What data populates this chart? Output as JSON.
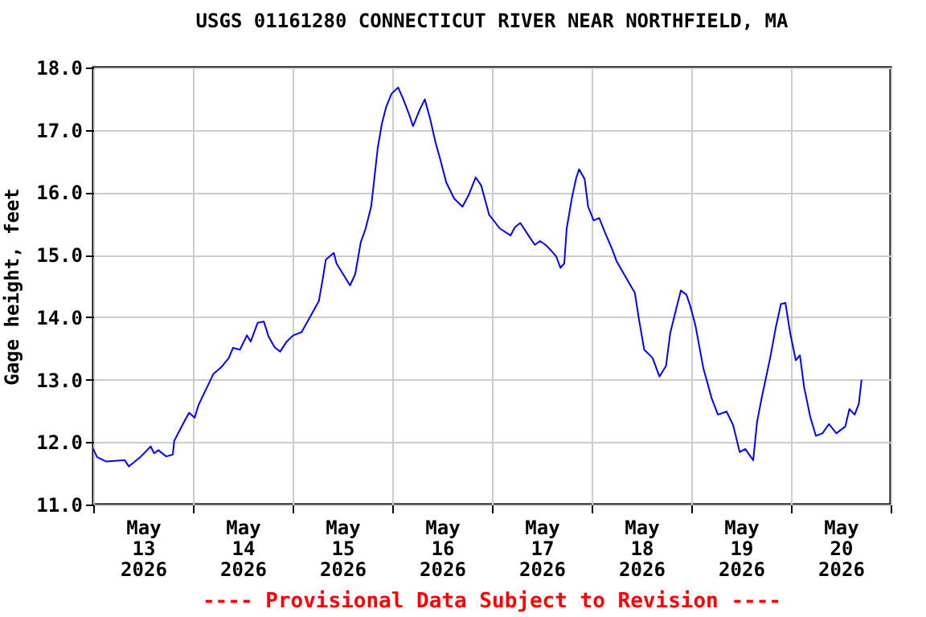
{
  "chart_data": {
    "type": "line",
    "title": "USGS 01161280 CONNECTICUT RIVER NEAR NORTHFIELD, MA",
    "ylabel": "Gage height, feet",
    "annotations": [
      "---- Provisional Data Subject to Revision ----"
    ],
    "grid": true,
    "marker": "none",
    "line_style": "solid",
    "xlim": [
      "2026-05-13T00:00",
      "2026-05-21T00:00"
    ],
    "xticks": [
      {
        "value": "2026-05-13T00:00",
        "label": null
      },
      {
        "value": "2026-05-13T12:00",
        "label": "May\n13\n2026"
      },
      {
        "value": "2026-05-14T00:00",
        "label": null
      },
      {
        "value": "2026-05-14T12:00",
        "label": "May\n14\n2026"
      },
      {
        "value": "2026-05-15T00:00",
        "label": null
      },
      {
        "value": "2026-05-15T12:00",
        "label": "May\n15\n2026"
      },
      {
        "value": "2026-05-16T00:00",
        "label": null
      },
      {
        "value": "2026-05-16T12:00",
        "label": "May\n16\n2026"
      },
      {
        "value": "2026-05-17T00:00",
        "label": null
      },
      {
        "value": "2026-05-17T12:00",
        "label": "May\n17\n2026"
      },
      {
        "value": "2026-05-18T00:00",
        "label": null
      },
      {
        "value": "2026-05-18T12:00",
        "label": "May\n18\n2026"
      },
      {
        "value": "2026-05-19T00:00",
        "label": null
      },
      {
        "value": "2026-05-19T12:00",
        "label": "May\n19\n2026"
      },
      {
        "value": "2026-05-20T00:00",
        "label": null
      },
      {
        "value": "2026-05-20T12:00",
        "label": "May\n20\n2026"
      },
      {
        "value": "2026-05-21T00:00",
        "label": null
      }
    ],
    "ylim": [
      11,
      18
    ],
    "yticks": [
      {
        "value": 11,
        "label": "11.0"
      },
      {
        "value": 12,
        "label": "12.0"
      },
      {
        "value": 13,
        "label": "13.0"
      },
      {
        "value": 14,
        "label": "14.0"
      },
      {
        "value": 15,
        "label": "15.0"
      },
      {
        "value": 16,
        "label": "16.0"
      },
      {
        "value": 17,
        "label": "17.0"
      },
      {
        "value": 18,
        "label": "18.0"
      }
    ],
    "series": [
      {
        "color": "#0000ff",
        "x": [
          "2026-05-13T00:00",
          "2026-05-13T00:55",
          "2026-05-13T03:05",
          "2026-05-13T07:35",
          "2026-05-13T08:35",
          "2026-05-13T11:30",
          "2026-05-13T13:50",
          "2026-05-13T14:40",
          "2026-05-13T15:40",
          "2026-05-13T17:35",
          "2026-05-13T19:10",
          "2026-05-13T19:30",
          "2026-05-13T21:50",
          "2026-05-13T23:05",
          "2026-05-14T00:25",
          "2026-05-14T01:20",
          "2026-05-14T02:20",
          "2026-05-14T04:55",
          "2026-05-14T06:50",
          "2026-05-14T08:40",
          "2026-05-14T09:40",
          "2026-05-14T11:20",
          "2026-05-14T13:00",
          "2026-05-14T13:55",
          "2026-05-14T15:35",
          "2026-05-14T17:05",
          "2026-05-14T18:10",
          "2026-05-14T19:40",
          "2026-05-14T21:00",
          "2026-05-14T22:35",
          "2026-05-15T00:10",
          "2026-05-15T02:10",
          "2026-05-15T04:40",
          "2026-05-15T06:20",
          "2026-05-15T07:20",
          "2026-05-15T08:00",
          "2026-05-15T09:55",
          "2026-05-15T10:35",
          "2026-05-15T12:10",
          "2026-05-15T13:50",
          "2026-05-15T15:05",
          "2026-05-15T16:25",
          "2026-05-15T17:35",
          "2026-05-15T18:55",
          "2026-05-15T19:35",
          "2026-05-15T20:30",
          "2026-05-15T21:30",
          "2026-05-15T22:30",
          "2026-05-15T23:50",
          "2026-05-16T01:25",
          "2026-05-16T02:40",
          "2026-05-16T04:10",
          "2026-05-16T05:00",
          "2026-05-16T06:35",
          "2026-05-16T07:50",
          "2026-05-16T09:05",
          "2026-05-16T10:25",
          "2026-05-16T11:40",
          "2026-05-16T13:00",
          "2026-05-16T14:55",
          "2026-05-16T16:55",
          "2026-05-16T18:25",
          "2026-05-16T20:05",
          "2026-05-16T21:25",
          "2026-05-16T23:20",
          "2026-05-17T01:55",
          "2026-05-17T04:30",
          "2026-05-17T05:30",
          "2026-05-17T06:50",
          "2026-05-17T09:00",
          "2026-05-17T10:20",
          "2026-05-17T11:35",
          "2026-05-17T12:55",
          "2026-05-17T14:05",
          "2026-05-17T15:30",
          "2026-05-17T16:30",
          "2026-05-17T17:25",
          "2026-05-17T18:00",
          "2026-05-17T19:20",
          "2026-05-17T20:20",
          "2026-05-17T21:00",
          "2026-05-17T22:20",
          "2026-05-17T23:10",
          "2026-05-18T00:30",
          "2026-05-18T01:50",
          "2026-05-18T03:05",
          "2026-05-18T05:00",
          "2026-05-18T06:00",
          "2026-05-18T08:55",
          "2026-05-18T10:25",
          "2026-05-18T11:25",
          "2026-05-18T12:40",
          "2026-05-18T14:40",
          "2026-05-18T16:20",
          "2026-05-18T17:55",
          "2026-05-18T18:55",
          "2026-05-18T20:30",
          "2026-05-18T21:30",
          "2026-05-18T22:50",
          "2026-05-18T23:40",
          "2026-05-19T01:00",
          "2026-05-19T02:55",
          "2026-05-19T04:55",
          "2026-05-19T06:25",
          "2026-05-19T08:30",
          "2026-05-19T10:05",
          "2026-05-19T11:40",
          "2026-05-19T13:00",
          "2026-05-19T14:55",
          "2026-05-19T15:50",
          "2026-05-19T17:05",
          "2026-05-19T19:00",
          "2026-05-19T20:20",
          "2026-05-19T21:35",
          "2026-05-19T22:40",
          "2026-05-19T23:50",
          "2026-05-20T01:10",
          "2026-05-20T02:10",
          "2026-05-20T03:10",
          "2026-05-20T04:40",
          "2026-05-20T06:00",
          "2026-05-20T07:35",
          "2026-05-20T09:10",
          "2026-05-20T10:55",
          "2026-05-20T13:05",
          "2026-05-20T14:05",
          "2026-05-20T15:20",
          "2026-05-20T16:20",
          "2026-05-20T17:00"
        ],
        "values": [
          11.89,
          11.76,
          11.69,
          11.71,
          11.61,
          11.77,
          11.93,
          11.82,
          11.87,
          11.77,
          11.8,
          12.02,
          12.32,
          12.47,
          12.39,
          12.59,
          12.73,
          13.09,
          13.2,
          13.35,
          13.51,
          13.48,
          13.71,
          13.61,
          13.91,
          13.93,
          13.7,
          13.52,
          13.45,
          13.61,
          13.71,
          13.76,
          14.06,
          14.26,
          14.64,
          14.92,
          15.03,
          14.86,
          14.69,
          14.51,
          14.69,
          15.2,
          15.42,
          15.77,
          16.16,
          16.71,
          17.1,
          17.36,
          17.58,
          17.68,
          17.49,
          17.23,
          17.06,
          17.32,
          17.49,
          17.19,
          16.8,
          16.5,
          16.16,
          15.9,
          15.77,
          15.96,
          16.24,
          16.11,
          15.64,
          15.42,
          15.31,
          15.44,
          15.51,
          15.29,
          15.16,
          15.22,
          15.16,
          15.08,
          14.97,
          14.79,
          14.86,
          15.42,
          15.94,
          16.24,
          16.37,
          16.21,
          15.77,
          15.55,
          15.59,
          15.38,
          15.08,
          14.9,
          14.56,
          14.39,
          13.96,
          13.48,
          13.35,
          13.05,
          13.22,
          13.74,
          14.17,
          14.43,
          14.36,
          14.2,
          13.87,
          13.18,
          12.7,
          12.44,
          12.49,
          12.27,
          11.84,
          11.89,
          11.71,
          12.32,
          12.75,
          13.35,
          13.83,
          14.21,
          14.23,
          13.74,
          13.31,
          13.39,
          12.88,
          12.4,
          12.1,
          12.14,
          12.29,
          12.14,
          12.25,
          12.53,
          12.44,
          12.61,
          13.0
        ]
      }
    ]
  }
}
